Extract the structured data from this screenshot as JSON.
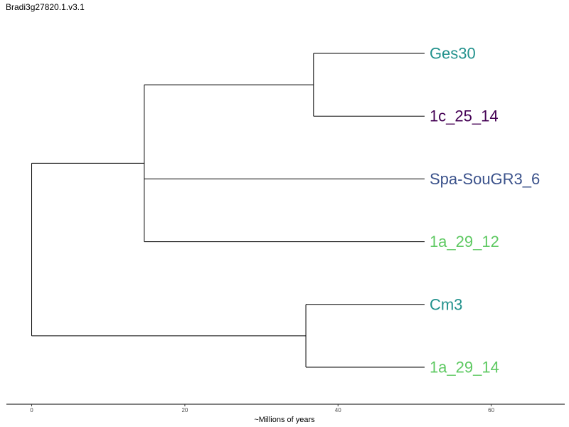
{
  "title": "Bradi3g27820.1.v3.1",
  "axis": {
    "title": "~Millions of years",
    "ticks": [
      0,
      20,
      40,
      60
    ],
    "range": [
      -3.3,
      69.6
    ]
  },
  "tree": {
    "tips": [
      {
        "id": "t1",
        "label": "Ges30",
        "color": "#21918c",
        "x": 51.3
      },
      {
        "id": "t2",
        "label": "1c_25_14",
        "color": "#440154",
        "x": 51.3
      },
      {
        "id": "t3",
        "label": "Spa-SouGR3_6",
        "color": "#3b528b",
        "x": 51.3
      },
      {
        "id": "t4",
        "label": "1a_29_12",
        "color": "#5ec962",
        "x": 51.3
      },
      {
        "id": "t5",
        "label": "Cm3",
        "color": "#21918c",
        "x": 51.3
      },
      {
        "id": "t6",
        "label": "1a_29_14",
        "color": "#5ec962",
        "x": 51.3
      }
    ],
    "nodes": [
      {
        "id": "n_ges_1c",
        "x": 36.8,
        "children": [
          "t1",
          "t2"
        ]
      },
      {
        "id": "n_upper",
        "x": 14.7,
        "children": [
          "n_ges_1c",
          "t3",
          "t4"
        ]
      },
      {
        "id": "n_lower",
        "x": 35.8,
        "children": [
          "t5",
          "t6"
        ]
      },
      {
        "id": "n_root",
        "x": 0.0,
        "children": [
          "n_upper",
          "n_lower"
        ]
      }
    ],
    "root": "n_root"
  }
}
